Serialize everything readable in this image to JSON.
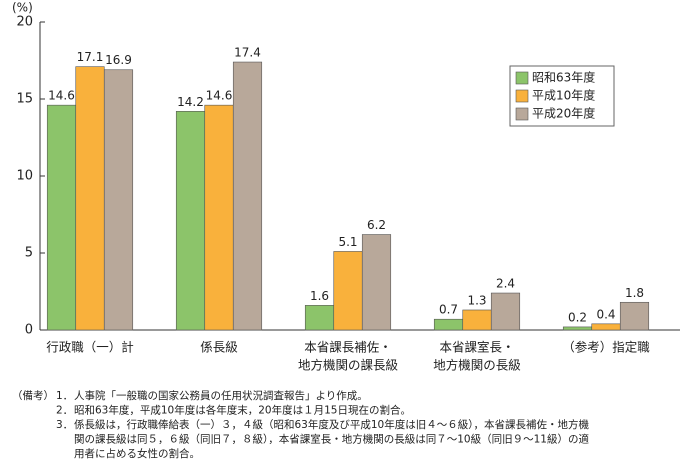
{
  "chart_data": {
    "type": "bar",
    "y_unit": "(%)",
    "categories": [
      [
        "行政職（一）計"
      ],
      [
        "係長級"
      ],
      [
        "本省課長補佐・",
        "地方機関の課長級"
      ],
      [
        "本省課室長・",
        "地方機関の長級"
      ],
      [
        "（参考）指定職"
      ]
    ],
    "series": [
      {
        "name": "昭和63年度",
        "color": "#8cc46a",
        "values": [
          14.6,
          14.2,
          1.6,
          0.7,
          0.2
        ]
      },
      {
        "name": "平成10年度",
        "color": "#f9b13c",
        "values": [
          17.1,
          14.6,
          5.1,
          1.3,
          0.4
        ]
      },
      {
        "name": "平成20年度",
        "color": "#b8a89a",
        "values": [
          16.9,
          17.4,
          6.2,
          2.4,
          1.8
        ]
      }
    ],
    "ylim": [
      0,
      20
    ],
    "yticks": [
      0,
      5,
      10,
      15,
      20
    ],
    "grid": false
  },
  "notes": {
    "label": "（備考）",
    "items": [
      {
        "number": "1．",
        "lines": [
          "人事院「一般職の国家公務員の任用状況調査報告」より作成。"
        ]
      },
      {
        "number": "2．",
        "lines": [
          "昭和63年度，平成10年度は各年度末，20年度は１月15日現在の割合。"
        ]
      },
      {
        "number": "3．",
        "lines": [
          "係長級は，行政職俸給表（一）３，４級（昭和63年度及び平成10年度は旧４～６級），本省課長補佐・地方機",
          "関の課長級は同５，６級（同旧７，８級），本省課室長・地方機関の長級は同７～10級（同旧９～11級）の適",
          "用者に占める女性の割合。"
        ]
      }
    ]
  }
}
